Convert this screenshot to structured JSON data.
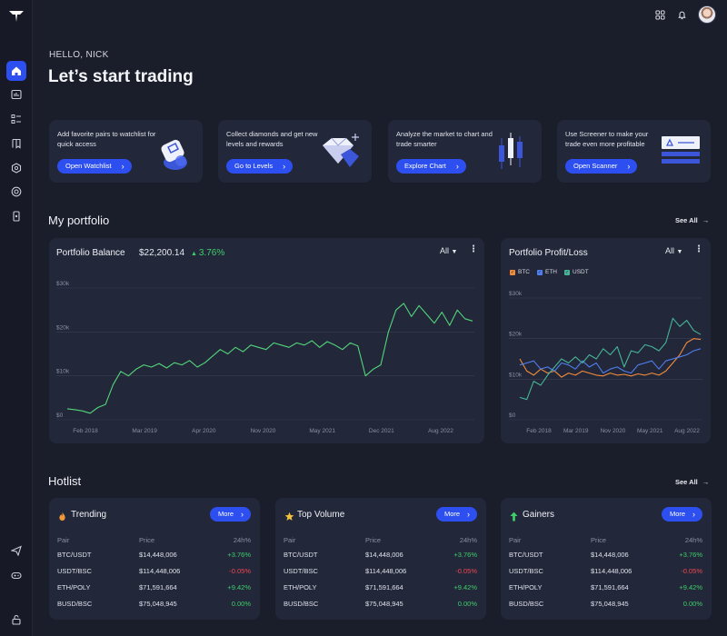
{
  "greeting": "HELLO, NICK",
  "headline": "Let’s start trading",
  "icons": {
    "logo": "logo-icon",
    "sidebar": [
      "home-icon",
      "chart-icon",
      "list-icon",
      "bookmark-icon",
      "globe-icon",
      "lifebuoy-icon",
      "phone-icon",
      "send-icon",
      "gamepad-icon",
      "lock-icon"
    ],
    "topbar": [
      "grid-icon",
      "bell-icon"
    ]
  },
  "promos": [
    {
      "text": "Add favorite pairs to watchlist for quick access",
      "button": "Open Watchlist"
    },
    {
      "text": "Collect diamonds and get new levels and rewards",
      "button": "Go to Levels"
    },
    {
      "text": "Analyze the market to chart and trade smarter",
      "button": "Explore Chart"
    },
    {
      "text": "Use Screener to make your trade even more profitable",
      "button": "Open Scanner"
    }
  ],
  "portfolio": {
    "title": "My portfolio",
    "see_all": "See All",
    "balance": {
      "title": "Portfolio Balance",
      "value": "$22,200.14",
      "change": "3.76%",
      "filter": "All"
    },
    "profit": {
      "title": "Portfolio Profit/Loss",
      "filter": "All"
    }
  },
  "chart_data": [
    {
      "type": "line",
      "title": "Portfolio Balance",
      "x_ticks": [
        "Feb 2018",
        "Mar 2019",
        "Apr 2020",
        "Nov 2020",
        "May 2021",
        "Dec 2021",
        "Aug 2022"
      ],
      "y_ticks": [
        "$0",
        "$10k",
        "$20k",
        "$30k"
      ],
      "ylim": [
        0,
        30000
      ],
      "grid": true,
      "series": [
        {
          "color": "#52d67a",
          "values": [
            2500,
            2300,
            2000,
            1500,
            2800,
            3500,
            8000,
            11000,
            10000,
            11500,
            12500,
            12000,
            12800,
            11800,
            13000,
            12500,
            13500,
            12000,
            13000,
            14500,
            16000,
            15000,
            16500,
            15500,
            17000,
            16500,
            16000,
            17500,
            17000,
            16500,
            17500,
            17000,
            18000,
            16500,
            17800,
            17000,
            16000,
            17500,
            16800,
            10000,
            11500,
            12500,
            20000,
            25000,
            26500,
            23500,
            26000,
            24000,
            22000,
            24500,
            21500,
            25000,
            23000,
            22500
          ]
        }
      ]
    },
    {
      "type": "line",
      "title": "Portfolio Profit/Loss",
      "x_ticks": [
        "Feb 2018",
        "Mar 2019",
        "Nov 2020",
        "May 2021",
        "Aug 2022"
      ],
      "y_ticks": [
        "$0",
        "$10k",
        "$20k",
        "$30k"
      ],
      "ylim": [
        0,
        30000
      ],
      "legend": [
        "BTC",
        "ETH",
        "USDT"
      ],
      "legend_position": "top-left",
      "grid": true,
      "series": [
        {
          "name": "BTC",
          "color": "#f28c3c",
          "values": [
            15000,
            12000,
            11000,
            12500,
            11500,
            12000,
            10500,
            11500,
            11000,
            12000,
            11500,
            11000,
            10800,
            11500,
            11000,
            11200,
            10800,
            11300,
            11000,
            11500,
            11000,
            12000,
            14000,
            16000,
            19000,
            20000,
            19800
          ]
        },
        {
          "name": "ETH",
          "color": "#4f7ff0",
          "values": [
            13500,
            14000,
            14500,
            12500,
            13000,
            12000,
            14000,
            13500,
            12500,
            14500,
            13000,
            14000,
            11500,
            12500,
            13000,
            12000,
            11500,
            13500,
            14000,
            14500,
            12500,
            14500,
            15000,
            15500,
            16000,
            17000,
            17500
          ]
        },
        {
          "name": "USDT",
          "color": "#45b597",
          "values": [
            5500,
            5000,
            9500,
            8500,
            11000,
            13000,
            15000,
            14000,
            15500,
            14000,
            16000,
            15000,
            17500,
            16000,
            18000,
            13000,
            17000,
            16500,
            18500,
            18000,
            17000,
            19000,
            25000,
            23000,
            24500,
            22000,
            21000
          ]
        }
      ]
    }
  ],
  "hotlist": {
    "title": "Hotlist",
    "see_all": "See All",
    "more": "More",
    "headers": {
      "pair": "Pair",
      "price": "Price",
      "change": "24h%"
    },
    "cards": [
      {
        "title": "Trending",
        "icon": "fire-icon",
        "rows": [
          {
            "pair": "BTC/USDT",
            "price": "$14,448,006",
            "change": "+3.76%",
            "dir": "pos"
          },
          {
            "pair": "USDT/BSC",
            "price": "$114,448,006",
            "change": "-0.05%",
            "dir": "neg"
          },
          {
            "pair": "ETH/POLY",
            "price": "$71,591,664",
            "change": "+9.42%",
            "dir": "pos"
          },
          {
            "pair": "BUSD/BSC",
            "price": "$75,048,945",
            "change": "0.00%",
            "dir": "pos"
          }
        ]
      },
      {
        "title": "Top Volume",
        "icon": "star-icon",
        "rows": [
          {
            "pair": "BTC/USDT",
            "price": "$14,448,006",
            "change": "+3.76%",
            "dir": "pos"
          },
          {
            "pair": "USDT/BSC",
            "price": "$114,448,006",
            "change": "-0.05%",
            "dir": "neg"
          },
          {
            "pair": "ETH/POLY",
            "price": "$71,591,664",
            "change": "+9.42%",
            "dir": "pos"
          },
          {
            "pair": "BUSD/BSC",
            "price": "$75,048,945",
            "change": "0.00%",
            "dir": "pos"
          }
        ]
      },
      {
        "title": "Gainers",
        "icon": "arrow-up-icon",
        "rows": [
          {
            "pair": "BTC/USDT",
            "price": "$14,448,006",
            "change": "+3.76%",
            "dir": "pos"
          },
          {
            "pair": "USDT/BSC",
            "price": "$114,448,006",
            "change": "-0.05%",
            "dir": "neg"
          },
          {
            "pair": "ETH/POLY",
            "price": "$71,591,664",
            "change": "+9.42%",
            "dir": "pos"
          },
          {
            "pair": "BUSD/BSC",
            "price": "$75,048,945",
            "change": "0.00%",
            "dir": "pos"
          }
        ]
      }
    ]
  }
}
